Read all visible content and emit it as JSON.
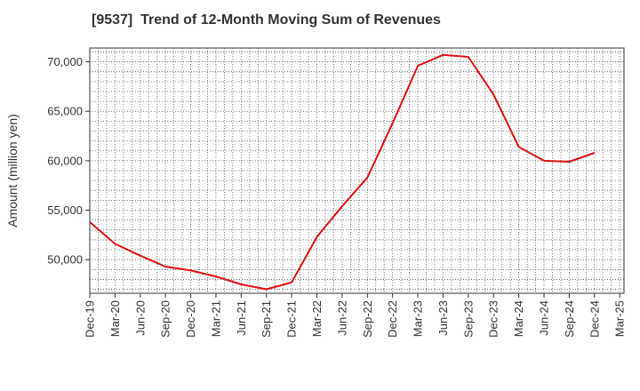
{
  "chart_data": {
    "type": "line",
    "title": "[9537]  Trend of 12-Month Moving Sum of Revenues",
    "xlabel": "",
    "ylabel": "Amount (million yen)",
    "x_ticks": [
      "Dec-19",
      "Mar-20",
      "Jun-20",
      "Sep-20",
      "Dec-20",
      "Mar-21",
      "Jun-21",
      "Sep-21",
      "Dec-21",
      "Mar-22",
      "Jun-22",
      "Sep-22",
      "Dec-22",
      "Mar-23",
      "Jun-23",
      "Sep-23",
      "Dec-23",
      "Mar-24",
      "Jun-24",
      "Sep-24",
      "Dec-24",
      "Mar-25"
    ],
    "y_ticks": [
      "50,000",
      "55,000",
      "60,000",
      "65,000",
      "70,000"
    ],
    "ylim": [
      46600,
      71400
    ],
    "grid": true,
    "series": [
      {
        "color": "#e01010",
        "x": [
          "Dec-19",
          "Mar-20",
          "Jun-20",
          "Sep-20",
          "Dec-20",
          "Mar-21",
          "Jun-21",
          "Sep-21",
          "Dec-21",
          "Mar-22",
          "Jun-22",
          "Sep-22",
          "Dec-22",
          "Mar-23",
          "Jun-23",
          "Sep-23",
          "Dec-23",
          "Mar-24",
          "Jun-24",
          "Sep-24",
          "Dec-24"
        ],
        "values": [
          53800,
          51600,
          50400,
          49300,
          48900,
          48300,
          47500,
          47000,
          47700,
          52300,
          55400,
          58300,
          63800,
          69600,
          70700,
          70500,
          66700,
          61400,
          60000,
          59900,
          60800
        ]
      }
    ]
  }
}
